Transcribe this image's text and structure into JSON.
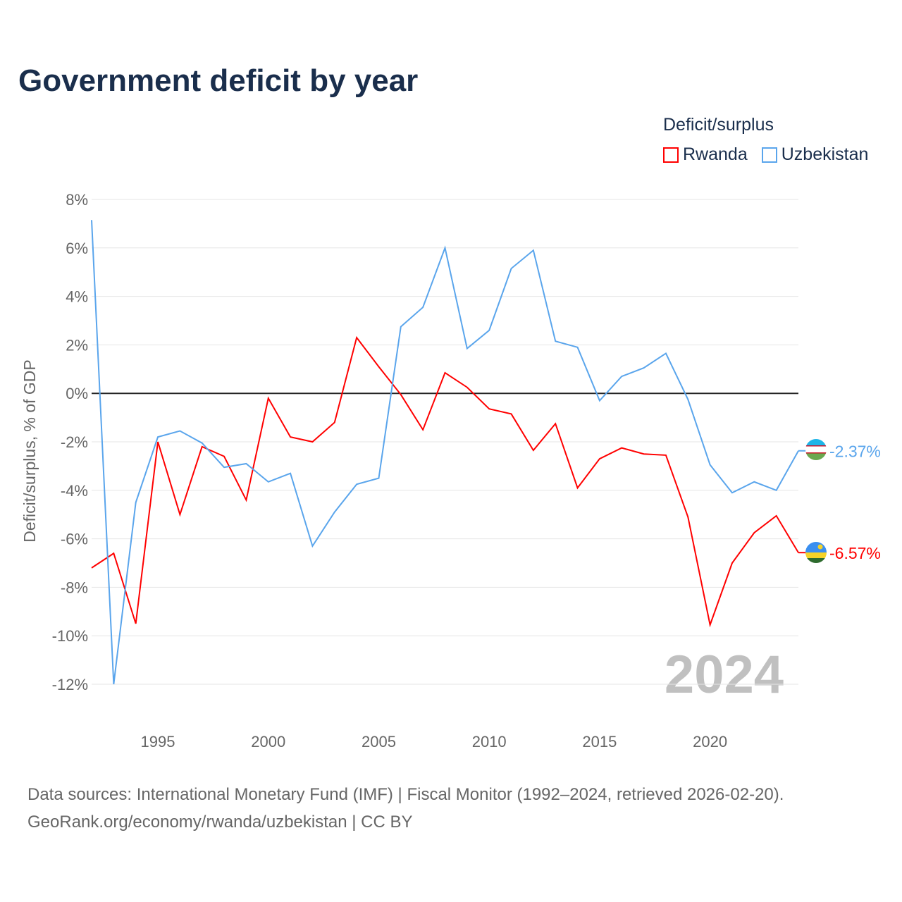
{
  "title": "Government deficit by year",
  "chart_data": {
    "type": "line",
    "title": "Government deficit by year",
    "xlabel": "",
    "ylabel": "Deficit/surplus, % of GDP",
    "legend_title": "Deficit/surplus",
    "legend_position": "top-right",
    "xlim": [
      1992,
      2024
    ],
    "ylim": [
      -12,
      8
    ],
    "x_ticks": [
      "1995",
      "2000",
      "2005",
      "2010",
      "2015",
      "2020"
    ],
    "y_ticks": [
      "8%",
      "6%",
      "4%",
      "2%",
      "0%",
      "-2%",
      "-4%",
      "-6%",
      "-8%",
      "-10%",
      "-12%"
    ],
    "year_watermark": "2024",
    "x": [
      1992,
      1993,
      1994,
      1995,
      1996,
      1997,
      1998,
      1999,
      2000,
      2001,
      2002,
      2003,
      2004,
      2005,
      2006,
      2007,
      2008,
      2009,
      2010,
      2011,
      2012,
      2013,
      2014,
      2015,
      2016,
      2017,
      2018,
      2019,
      2020,
      2021,
      2022,
      2023,
      2024
    ],
    "series": [
      {
        "name": "Rwanda",
        "color": "#ff0000",
        "end_label": "-6.57%",
        "values": [
          -7.2,
          -6.6,
          -9.5,
          -2.0,
          -5.0,
          -2.2,
          -2.6,
          -4.4,
          -0.2,
          -1.8,
          -2.0,
          -1.2,
          2.3,
          1.1,
          -0.05,
          -1.5,
          0.85,
          0.25,
          -0.64,
          -0.85,
          -2.35,
          -1.25,
          -3.9,
          -2.7,
          -2.25,
          -2.5,
          -2.55,
          -5.1,
          -9.55,
          -7.0,
          -5.75,
          -5.05,
          -6.57
        ]
      },
      {
        "name": "Uzbekistan",
        "color": "#5aa5ec",
        "end_label": "-2.37%",
        "values": [
          7.15,
          -12.0,
          -4.5,
          -1.8,
          -1.55,
          -2.05,
          -3.05,
          -2.9,
          -3.65,
          -3.3,
          -6.3,
          -4.9,
          -3.75,
          -3.5,
          2.75,
          3.55,
          6.0,
          1.85,
          2.6,
          5.15,
          5.9,
          2.15,
          1.9,
          -0.3,
          0.7,
          1.05,
          1.65,
          -0.25,
          -2.95,
          -4.1,
          -3.65,
          -4.0,
          -2.37
        ]
      }
    ]
  },
  "source_line1": "Data sources: International Monetary Fund (IMF) | Fiscal Monitor (1992–2024, retrieved 2026-02-20).",
  "source_line2": "GeoRank.org/economy/rwanda/uzbekistan | CC BY"
}
